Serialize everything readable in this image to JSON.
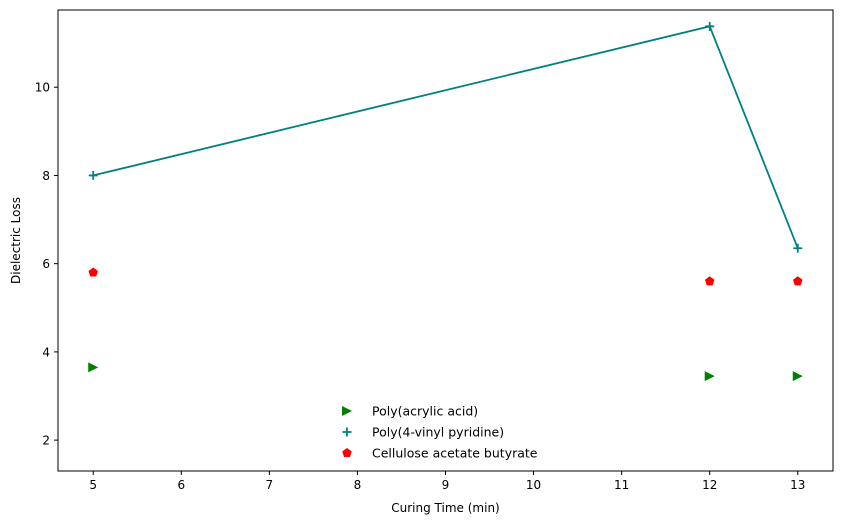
{
  "chart_data": {
    "type": "scatter",
    "title": "",
    "xlabel": "Curing Time (min)",
    "ylabel": "Dielectric Loss",
    "xlim": [
      4.6,
      13.4
    ],
    "ylim": [
      1.3,
      11.75
    ],
    "xticks": [
      5,
      6,
      7,
      8,
      9,
      10,
      11,
      12,
      13
    ],
    "yticks": [
      2,
      4,
      6,
      8,
      10
    ],
    "grid": false,
    "legend_position": "lower-center",
    "series": [
      {
        "name": "Poly(acrylic acid)",
        "marker": "triangle-right",
        "color": "#008000",
        "line": false,
        "x": [
          5,
          12,
          13
        ],
        "y": [
          3.65,
          3.45,
          3.45
        ]
      },
      {
        "name": "Poly(4-vinyl pyridine)",
        "marker": "plus",
        "color": "#008080",
        "line": true,
        "x": [
          5,
          12,
          13
        ],
        "y": [
          8.0,
          11.38,
          6.35
        ]
      },
      {
        "name": "Cellulose acetate butyrate",
        "marker": "pentagon",
        "color": "#ff0000",
        "line": false,
        "x": [
          5,
          12,
          13
        ],
        "y": [
          5.8,
          5.6,
          5.6
        ]
      }
    ]
  }
}
